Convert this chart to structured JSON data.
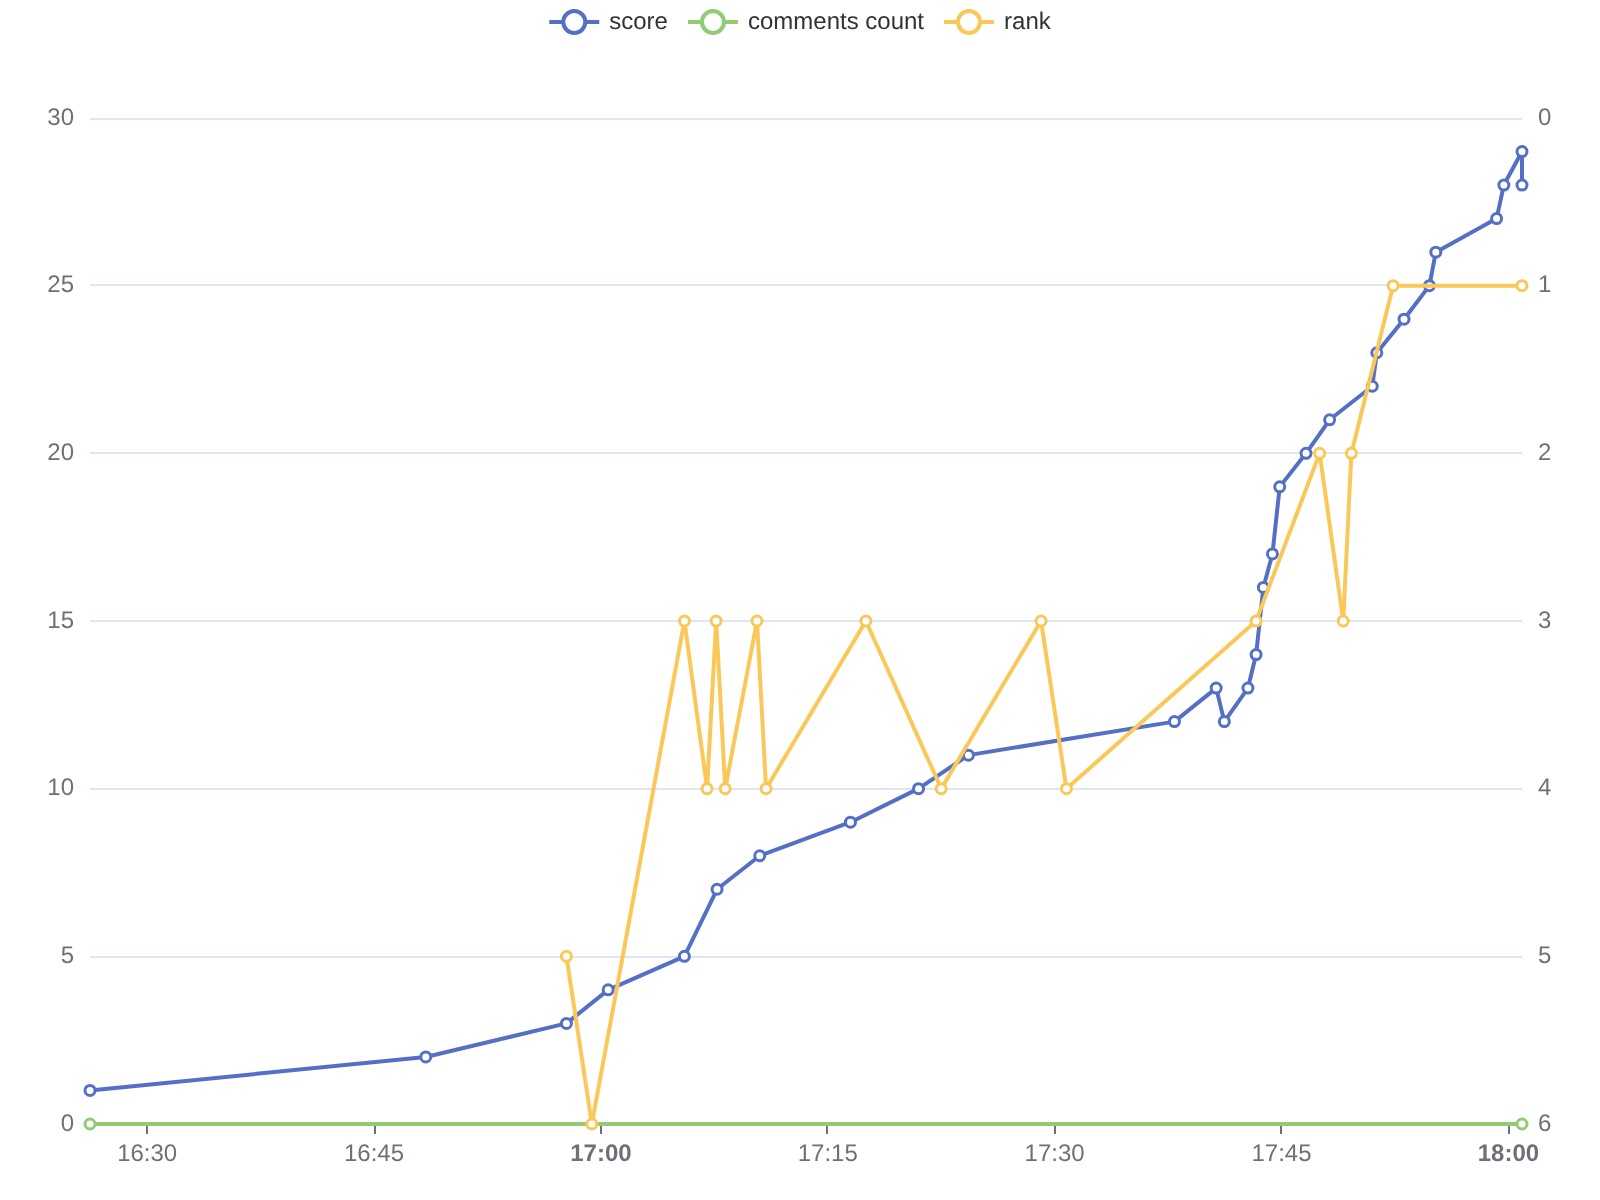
{
  "chart_data": {
    "type": "line",
    "series": [
      {
        "name": "score",
        "color": "#5470c6",
        "x": [
          16.437,
          16.807,
          16.962,
          17.008,
          17.092,
          17.128,
          17.175,
          17.275,
          17.35,
          17.405,
          17.632,
          17.678,
          17.687,
          17.713,
          17.722,
          17.73,
          17.74,
          17.748,
          17.777,
          17.803,
          17.85,
          17.855,
          17.885,
          17.913,
          17.92,
          17.987,
          17.995,
          18.015,
          18.015
        ],
        "values": [
          1,
          2,
          3,
          4,
          5,
          7,
          8,
          9,
          10,
          11,
          12,
          13,
          12,
          13,
          14,
          16,
          17,
          19,
          20,
          21,
          22,
          23,
          24,
          25,
          26,
          27,
          28,
          29,
          28
        ]
      },
      {
        "name": "comments count",
        "color": "#91cc75",
        "x": [
          16.437,
          18.015
        ],
        "values": [
          0,
          0
        ]
      },
      {
        "name": "rank",
        "color": "#fac858",
        "axis": "y2",
        "x": [
          16.962,
          16.99,
          17.092,
          17.117,
          17.127,
          17.137,
          17.172,
          17.182,
          17.292,
          17.375,
          17.485,
          17.513,
          17.722,
          17.792,
          17.818,
          17.827,
          17.873,
          18.015
        ],
        "values": [
          5,
          6,
          3,
          4,
          3,
          4,
          3,
          4,
          3,
          4,
          3,
          4,
          3,
          2,
          3,
          2,
          1,
          1
        ]
      }
    ],
    "xlim": [
      16.437,
      18.015
    ],
    "xticks": [
      {
        "value": 16.5,
        "label": "16:30"
      },
      {
        "value": 16.75,
        "label": "16:45"
      },
      {
        "value": 17,
        "label": "17:00"
      },
      {
        "value": 17.25,
        "label": "17:15"
      },
      {
        "value": 17.5,
        "label": "17:30"
      },
      {
        "value": 17.75,
        "label": "17:45"
      },
      {
        "value": 18,
        "label": "18:00"
      }
    ],
    "ylim": [
      0,
      30
    ],
    "yticks": [
      0,
      5,
      10,
      15,
      20,
      25,
      30
    ],
    "y2lim": [
      6,
      0
    ],
    "y2ticks": [
      0,
      1,
      2,
      3,
      4,
      5,
      6
    ],
    "grid": "y",
    "legend": "top",
    "marker": "circle",
    "line_style": "solid"
  }
}
